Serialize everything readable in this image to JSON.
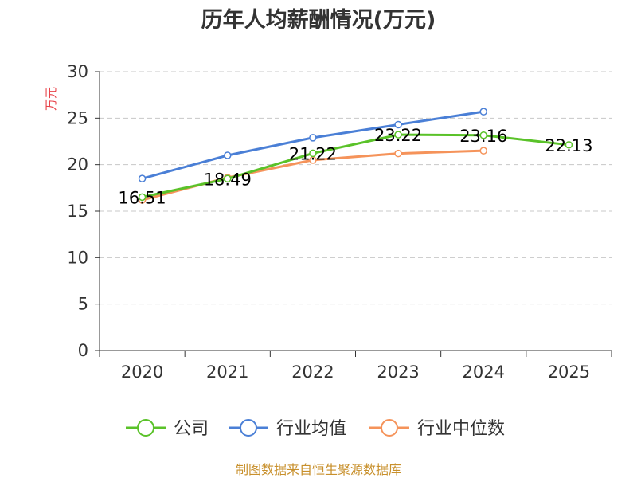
{
  "chart_data": {
    "type": "line",
    "title": "历年人均薪酬情况(万元)",
    "ylabel": "万元",
    "xlabel": "",
    "categories": [
      "2020",
      "2021",
      "2022",
      "2023",
      "2024",
      "2025"
    ],
    "ylim": [
      0,
      30
    ],
    "yticks": [
      0,
      5,
      10,
      15,
      20,
      25,
      30
    ],
    "grid": true,
    "legend_position": "bottom",
    "series": [
      {
        "name": "公司",
        "color": "#5ac229",
        "values": [
          16.51,
          18.49,
          21.22,
          23.22,
          23.16,
          22.13
        ],
        "labels": [
          "16.51",
          "18.49",
          "21.22",
          "23.22",
          "23.16",
          "22.13"
        ]
      },
      {
        "name": "行业均值",
        "color": "#4a7fd6",
        "values": [
          18.5,
          21.0,
          22.9,
          24.3,
          25.7,
          null
        ]
      },
      {
        "name": "行业中位数",
        "color": "#f5935a",
        "values": [
          16.2,
          18.6,
          20.5,
          21.2,
          21.5,
          null
        ]
      }
    ],
    "source": "制图数据来自恒生聚源数据库"
  }
}
